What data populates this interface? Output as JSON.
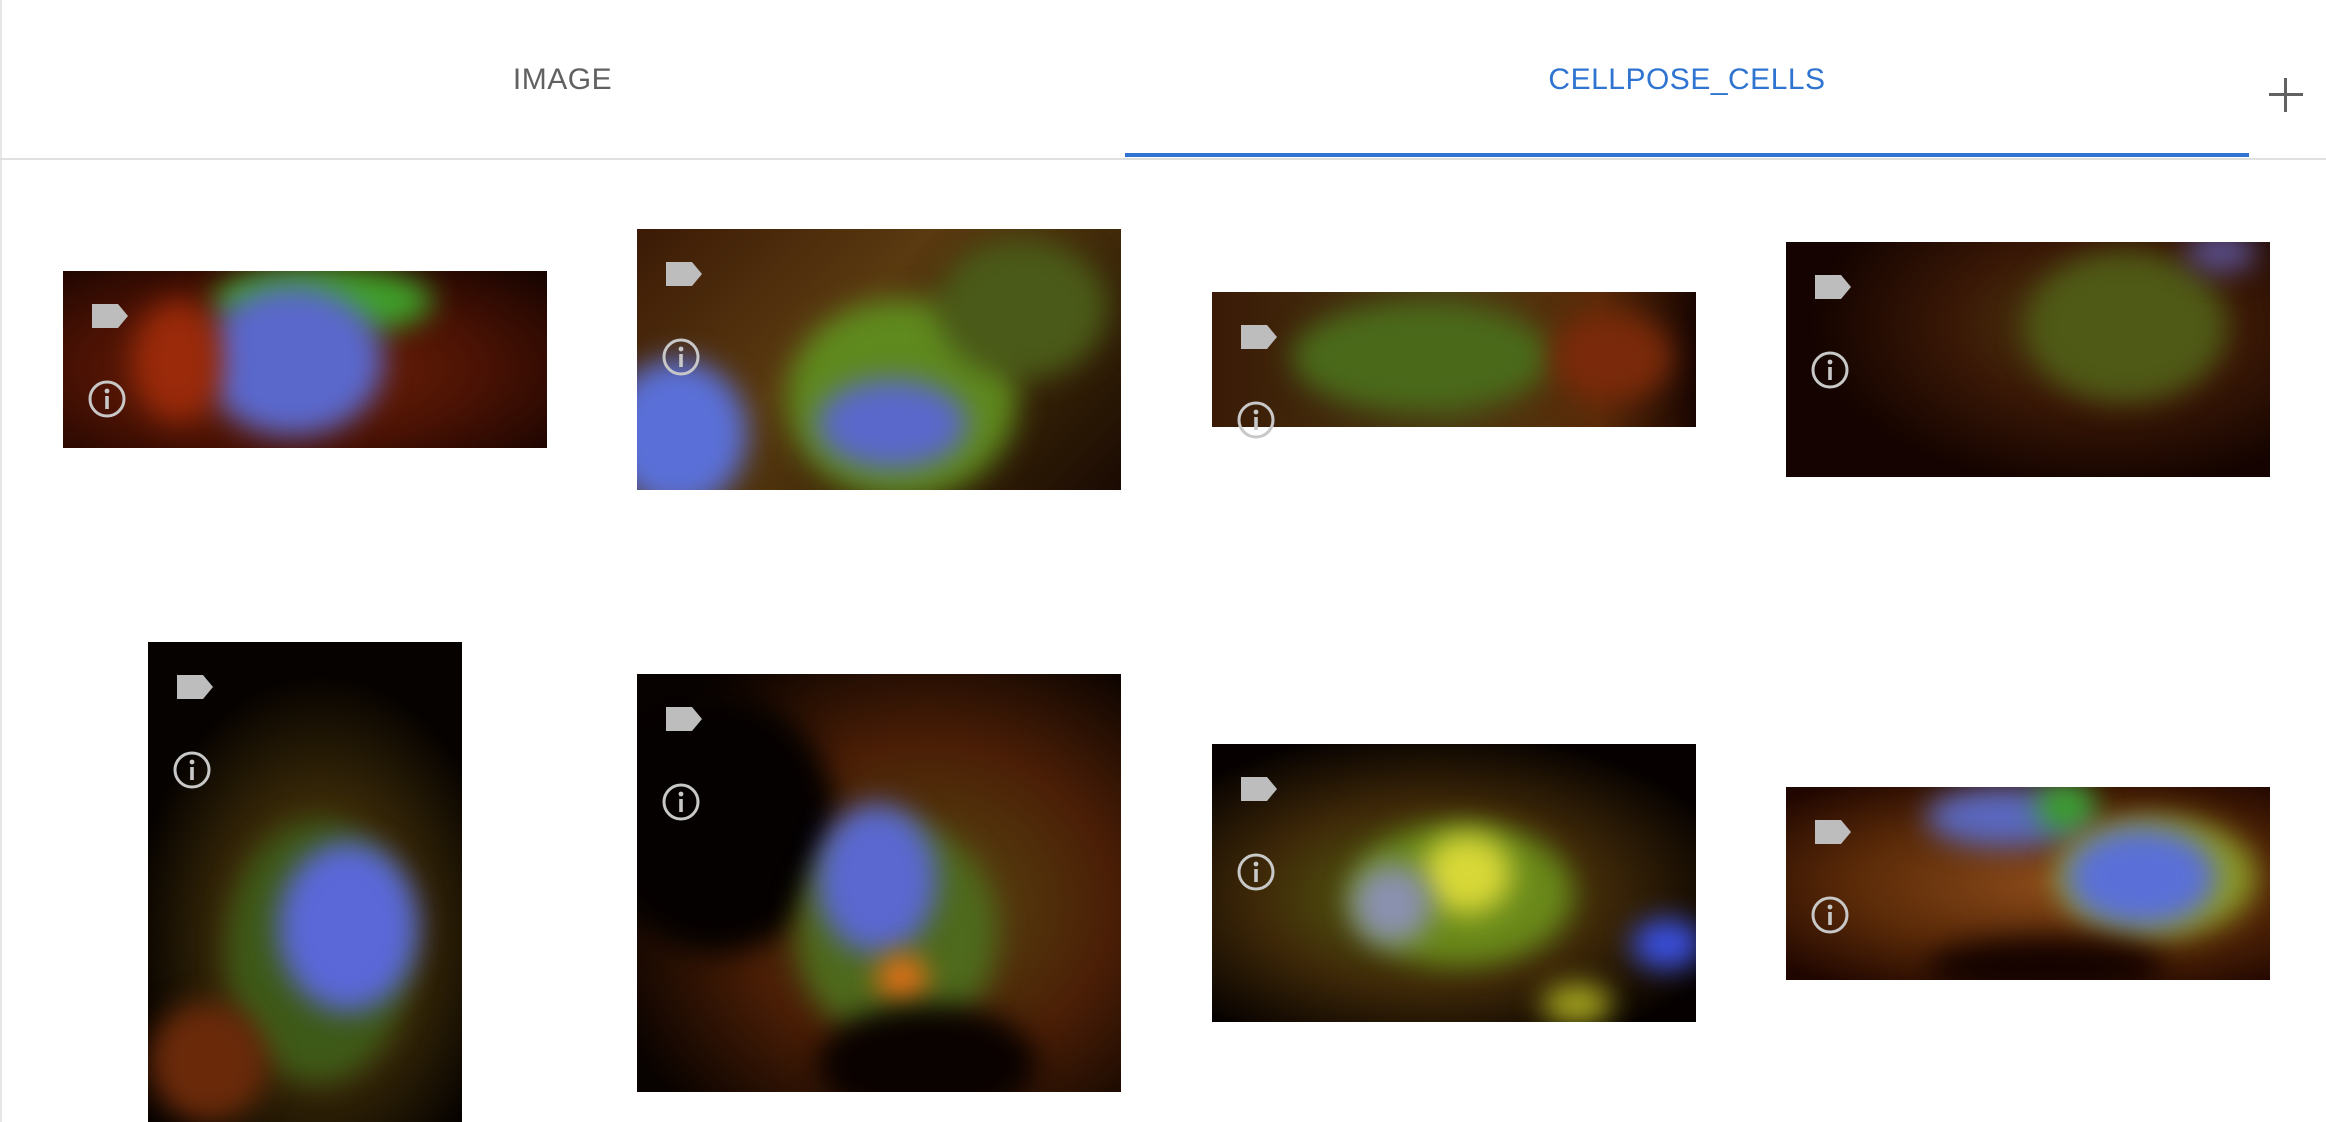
{
  "tabs": [
    {
      "label": "IMAGE",
      "active": false
    },
    {
      "label": "CELLPOSE_CELLS",
      "active": true
    }
  ],
  "colors": {
    "accent": "#2f74d0",
    "tab_text": "#616161",
    "icon": "#bdbdbd"
  },
  "icons": {
    "tile_tag": "label-icon",
    "tile_info": "info-icon",
    "add_tab": "plus-icon"
  }
}
